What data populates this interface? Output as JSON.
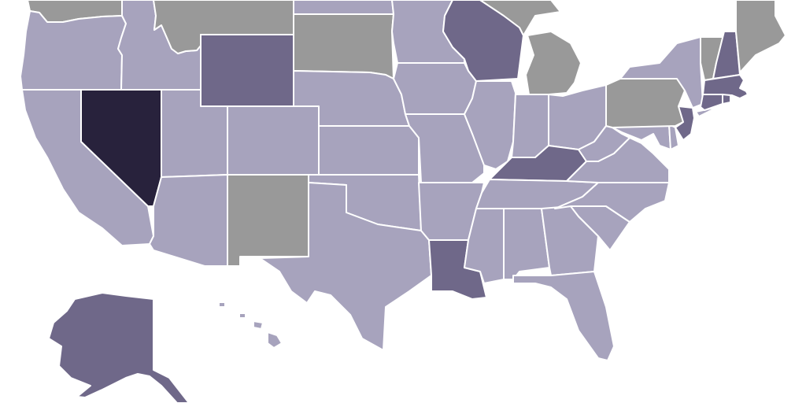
{
  "map": {
    "type": "choropleth",
    "region": "United States",
    "palette": {
      "light": "#a7a3bd",
      "medium": "#6f6889",
      "dark": "#28223c",
      "nodata": "#999999",
      "border": "#ffffff",
      "background": "#ffffff"
    },
    "states": {
      "WA": "nodata",
      "OR": "light",
      "CA": "light",
      "NV": "dark",
      "ID": "light",
      "MT": "nodata",
      "WY": "medium",
      "UT": "light",
      "AZ": "light",
      "CO": "light",
      "NM": "nodata",
      "ND": "light",
      "SD": "nodata",
      "NE": "light",
      "KS": "light",
      "OK": "light",
      "TX": "light",
      "MN": "light",
      "IA": "light",
      "MO": "light",
      "AR": "light",
      "LA": "medium",
      "WI": "medium",
      "IL": "light",
      "MI": "nodata",
      "IN": "light",
      "OH": "light",
      "KY": "medium",
      "TN": "light",
      "MS": "light",
      "AL": "light",
      "GA": "light",
      "FL": "light",
      "SC": "light",
      "NC": "light",
      "VA": "light",
      "WV": "light",
      "MD": "light",
      "DE": "light",
      "PA": "nodata",
      "NJ": "medium",
      "NY": "light",
      "CT": "medium",
      "RI": "medium",
      "MA": "medium",
      "VT": "nodata",
      "NH": "medium",
      "ME": "nodata",
      "AK": "medium",
      "HI": "light"
    }
  }
}
